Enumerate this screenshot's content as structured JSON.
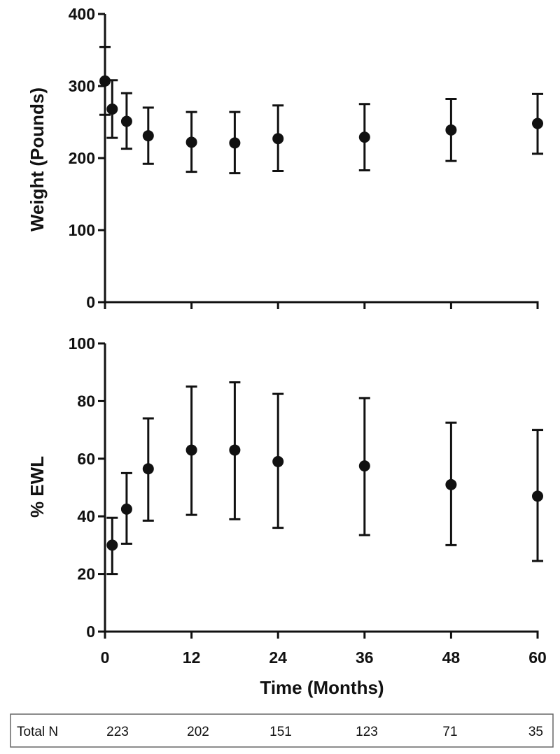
{
  "chart_data": [
    {
      "type": "scatter",
      "title": "",
      "xlabel": "",
      "ylabel": "Weight (Pounds)",
      "xlim": [
        0,
        60
      ],
      "ylim": [
        0,
        400
      ],
      "yticks": [
        "0",
        "100",
        "200",
        "300",
        "400"
      ],
      "xticks": [
        0,
        12,
        24,
        36,
        48,
        60
      ],
      "xticklabels_shown": false,
      "error_bars": true,
      "grid": false,
      "x": [
        0,
        1,
        3,
        6,
        12,
        18,
        24,
        36,
        48,
        60
      ],
      "series": [
        {
          "values": [
            307,
            268,
            251,
            231,
            222,
            221,
            227,
            229,
            239,
            248
          ],
          "err_low": [
            260,
            228,
            213,
            192,
            181,
            179,
            182,
            183,
            196,
            206
          ],
          "err_high": [
            354,
            308,
            290,
            270,
            264,
            264,
            273,
            275,
            282,
            289
          ]
        }
      ]
    },
    {
      "type": "scatter",
      "title": "",
      "xlabel": "Time  (Months)",
      "ylabel": "% EWL",
      "xlim": [
        0,
        60
      ],
      "ylim": [
        0,
        100
      ],
      "yticks": [
        "0",
        "20",
        "40",
        "60",
        "80",
        "100"
      ],
      "xticks": [
        "0",
        "12",
        "24",
        "36",
        "48",
        "60"
      ],
      "error_bars": true,
      "grid": false,
      "x": [
        1,
        3,
        6,
        12,
        18,
        24,
        36,
        48,
        60
      ],
      "series": [
        {
          "values": [
            30,
            42.5,
            56.5,
            63,
            63,
            59,
            57.5,
            51,
            47
          ],
          "err_low": [
            20,
            30.5,
            38.5,
            40.5,
            39,
            36,
            33.5,
            30,
            24.5
          ],
          "err_high": [
            39.5,
            55,
            74,
            85,
            86.5,
            82.5,
            81,
            72.5,
            70
          ]
        }
      ]
    }
  ],
  "table": {
    "label": "Total N",
    "values": [
      "223",
      "202",
      "151",
      "123",
      "71",
      "35"
    ]
  }
}
